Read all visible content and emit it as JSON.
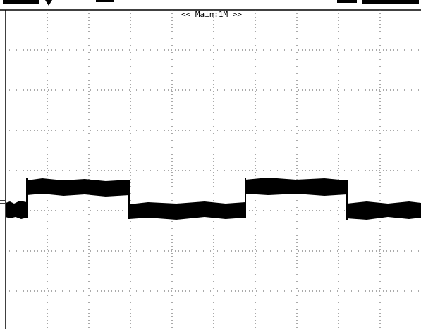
{
  "screen": {
    "timebase_label": "<< Main:1M >>"
  }
}
